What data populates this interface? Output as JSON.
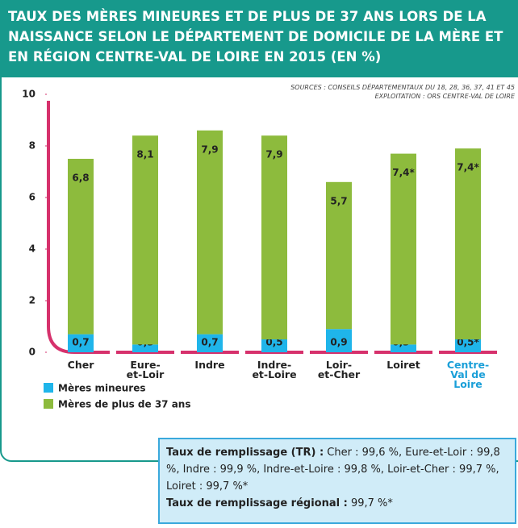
{
  "chart_data": {
    "type": "stacked_bar",
    "title": "TAUX DES MÈRES MINEURES ET DE PLUS DE 37 ANS LORS DE LA NAISSANCE SELON LE DÉPARTEMENT DE DOMICILE DE LA MÈRE ET EN RÉGION CENTRE-VAL DE LOIRE EN 2015 (EN %)",
    "sources": [
      "SOURCES : CONSEILS DÉPARTEMENTAUX DU 18, 28, 36, 37, 41 ET 45",
      "EXPLOITATION : ORS CENTRE-VAL DE LOIRE"
    ],
    "categories": [
      "Cher",
      "Eure-\net-Loir",
      "Indre",
      "Indre-\net-Loire",
      "Loir-\net-Cher",
      "Loiret",
      "Centre-\nVal de Loire"
    ],
    "series": [
      {
        "name": "Mères mineures",
        "color": "#1fb5ea",
        "values": [
          0.7,
          0.3,
          0.7,
          0.5,
          0.9,
          0.3,
          0.5
        ],
        "value_labels": [
          "0,7",
          "0,3",
          "0,7",
          "0,5",
          "0,9",
          "0,3*",
          "0,5*"
        ]
      },
      {
        "name": "Mères de plus de 37 ans",
        "color": "#8dbb3d",
        "values": [
          6.8,
          8.1,
          7.9,
          7.9,
          5.7,
          7.4,
          7.4
        ],
        "value_labels": [
          "6,8",
          "8,1",
          "7,9",
          "7,9",
          "5,7",
          "7,4*",
          "7,4*"
        ]
      }
    ],
    "ylim": [
      0,
      10
    ],
    "yticks": [
      0,
      2,
      4,
      6,
      8,
      10
    ]
  },
  "note": {
    "tr_label": "Taux de remplissage (TR) :",
    "tr_text": "Cher : 99,6 %, Eure-et-Loir : 99,8 %, Indre : 99,9 %, Indre-et-Loire : 99,8 %, Loir-et-Cher : 99,7 %, Loiret : 99,7 %*",
    "regional_label": "Taux de remplissage régional :",
    "regional_text": "99,7 %*"
  }
}
